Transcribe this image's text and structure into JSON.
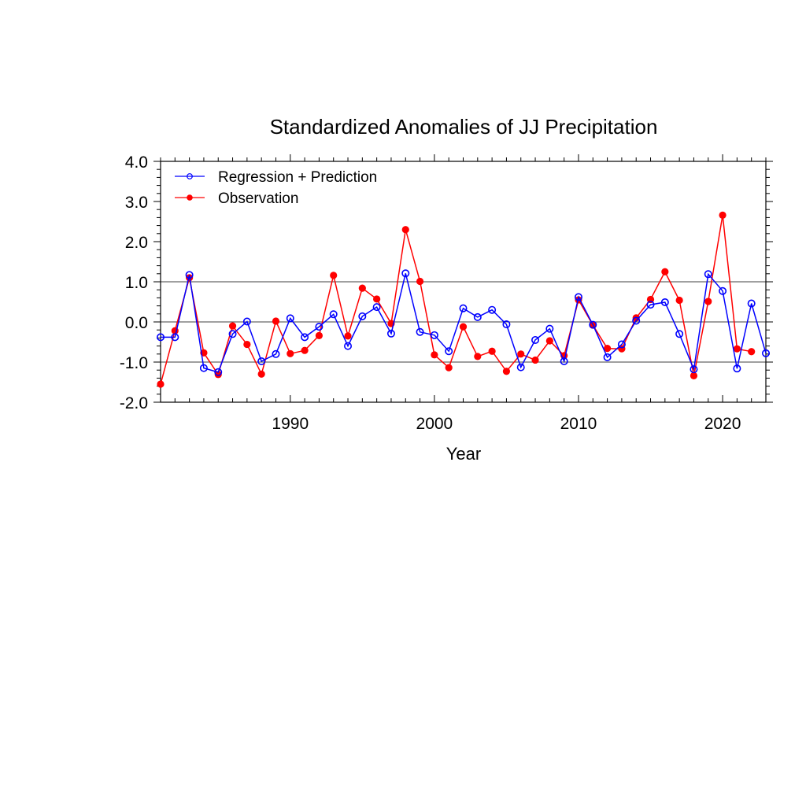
{
  "chart_data": {
    "type": "line",
    "title": "Standardized Anomalies of JJ Precipitation",
    "xlabel": "Year",
    "ylabel": "",
    "xlim": [
      1981,
      2023
    ],
    "ylim": [
      -2.0,
      4.0
    ],
    "xticks": [
      1990,
      2000,
      2010,
      2020
    ],
    "yticks": [
      -2.0,
      -1.0,
      0.0,
      1.0,
      2.0,
      3.0,
      4.0
    ],
    "ytick_labels": [
      "-2.0",
      "-1.0",
      "0.0",
      "1.0",
      "2.0",
      "3.0",
      "4.0"
    ],
    "reference_lines": [
      -1.0,
      0.0,
      1.0
    ],
    "legend_position": "top-left",
    "series": [
      {
        "name": "Regression + Prediction",
        "color": "#0000ff",
        "marker": "open-circle",
        "x": [
          1981,
          1982,
          1983,
          1984,
          1985,
          1986,
          1987,
          1988,
          1989,
          1990,
          1991,
          1992,
          1993,
          1994,
          1995,
          1996,
          1997,
          1998,
          1999,
          2000,
          2001,
          2002,
          2003,
          2004,
          2005,
          2006,
          2007,
          2008,
          2009,
          2010,
          2011,
          2012,
          2013,
          2014,
          2015,
          2016,
          2017,
          2018,
          2019,
          2020,
          2021,
          2022,
          2023
        ],
        "values": [
          -0.38,
          -0.38,
          1.17,
          -1.15,
          -1.25,
          -0.3,
          0.01,
          -0.98,
          -0.8,
          0.09,
          -0.38,
          -0.12,
          0.19,
          -0.6,
          0.14,
          0.37,
          -0.29,
          1.21,
          -0.25,
          -0.33,
          -0.73,
          0.34,
          0.12,
          0.3,
          -0.06,
          -1.13,
          -0.45,
          -0.17,
          -0.98,
          0.62,
          -0.07,
          -0.88,
          -0.56,
          0.03,
          0.43,
          0.49,
          -0.3,
          -1.18,
          1.19,
          0.77,
          -1.16,
          0.46,
          -0.78
        ]
      },
      {
        "name": "Observation",
        "color": "#ff0000",
        "marker": "filled-circle",
        "x": [
          1981,
          1982,
          1983,
          1984,
          1985,
          1986,
          1987,
          1988,
          1989,
          1990,
          1991,
          1992,
          1993,
          1994,
          1995,
          1996,
          1997,
          1998,
          1999,
          2000,
          2001,
          2002,
          2003,
          2004,
          2005,
          2006,
          2007,
          2008,
          2009,
          2010,
          2011,
          2012,
          2013,
          2014,
          2015,
          2016,
          2017,
          2018,
          2019,
          2020,
          2021,
          2022
        ],
        "values": [
          -1.55,
          -0.22,
          1.1,
          -0.77,
          -1.31,
          -0.1,
          -0.56,
          -1.3,
          0.02,
          -0.79,
          -0.71,
          -0.34,
          1.16,
          -0.35,
          0.84,
          0.57,
          -0.04,
          2.3,
          1.01,
          -0.82,
          -1.14,
          -0.12,
          -0.86,
          -0.73,
          -1.23,
          -0.8,
          -0.95,
          -0.47,
          -0.84,
          0.55,
          -0.08,
          -0.66,
          -0.67,
          0.1,
          0.56,
          1.25,
          0.54,
          -1.34,
          0.51,
          2.66,
          -0.67,
          -0.74
        ]
      }
    ]
  }
}
